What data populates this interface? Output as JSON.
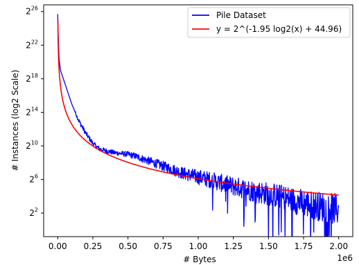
{
  "chart_data": {
    "type": "line",
    "xlabel": "# Bytes",
    "ylabel": "# Instances (log2 Scale)",
    "x_offset_label": "1e6",
    "xlim": [
      -0.1,
      2.1
    ],
    "ylim_log2": [
      -0.8,
      26.8
    ],
    "x_ticks": [
      {
        "value": 0.0,
        "label": "0.00"
      },
      {
        "value": 0.25,
        "label": "0.25"
      },
      {
        "value": 0.5,
        "label": "0.50"
      },
      {
        "value": 0.75,
        "label": "0.75"
      },
      {
        "value": 1.0,
        "label": "1.00"
      },
      {
        "value": 1.25,
        "label": "1.25"
      },
      {
        "value": 1.5,
        "label": "1.50"
      },
      {
        "value": 1.75,
        "label": "1.75"
      },
      {
        "value": 2.0,
        "label": "2.00"
      }
    ],
    "y_ticks": [
      {
        "exp": 2,
        "base": "2",
        "sup": "2"
      },
      {
        "exp": 6,
        "base": "2",
        "sup": "6"
      },
      {
        "exp": 10,
        "base": "2",
        "sup": "10"
      },
      {
        "exp": 14,
        "base": "2",
        "sup": "14"
      },
      {
        "exp": 18,
        "base": "2",
        "sup": "18"
      },
      {
        "exp": 22,
        "base": "2",
        "sup": "22"
      },
      {
        "exp": 26,
        "base": "2",
        "sup": "26"
      }
    ],
    "series": [
      {
        "name": "Pile Dataset",
        "color": "#0000ff",
        "style": "noisy",
        "x": [
          0.0,
          0.005,
          0.01,
          0.02,
          0.04,
          0.06,
          0.08,
          0.1,
          0.15,
          0.2,
          0.25,
          0.3,
          0.35,
          0.4,
          0.45,
          0.5,
          0.55,
          0.6,
          0.7,
          0.8,
          0.9,
          1.0,
          1.1,
          1.2,
          1.3,
          1.4,
          1.5,
          1.6,
          1.7,
          1.8,
          1.9,
          2.0
        ],
        "y_log2": [
          25.7,
          22.5,
          20.3,
          19.0,
          18.0,
          17.0,
          16.0,
          15.0,
          13.0,
          11.5,
          10.3,
          9.6,
          9.4,
          9.2,
          9.1,
          9.0,
          8.8,
          8.5,
          7.9,
          7.3,
          6.7,
          6.3,
          5.9,
          5.4,
          5.0,
          4.6,
          4.3,
          3.9,
          3.4,
          3.0,
          2.7,
          2.4
        ],
        "noise_log2": [
          0,
          0,
          0,
          0,
          0,
          0,
          0,
          0,
          0.3,
          0.3,
          0.3,
          0.3,
          0.3,
          0.3,
          0.3,
          0.35,
          0.4,
          0.45,
          0.55,
          0.65,
          0.75,
          0.9,
          1.0,
          1.1,
          1.2,
          1.3,
          1.4,
          1.5,
          1.6,
          1.7,
          1.8,
          1.9
        ]
      },
      {
        "name": "y = 2^(-1.95 log2(x) + 44.96)",
        "color": "#ff0000",
        "style": "power",
        "slope": -1.95,
        "intercept": 44.96
      }
    ],
    "legend_position": "top-right",
    "grid": false
  }
}
